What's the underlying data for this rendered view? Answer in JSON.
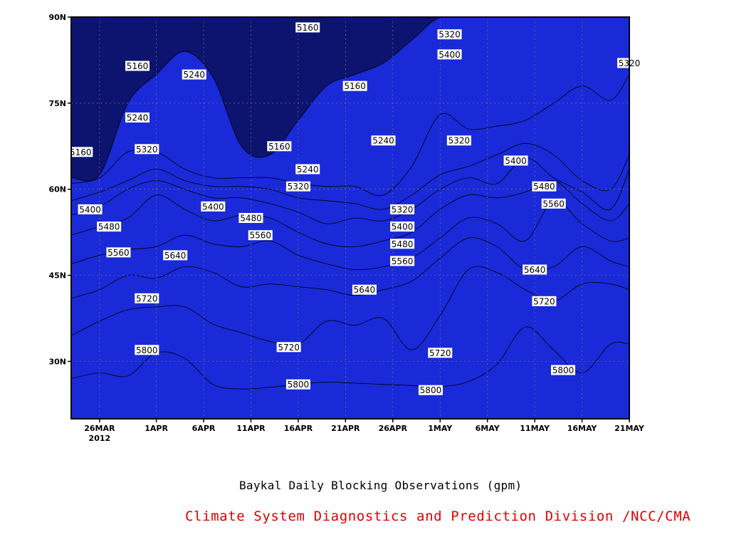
{
  "caption": "Baykal Daily Blocking Observations (gpm)",
  "credit": "Climate System Diagnostics and Prediction Division /NCC/CMA",
  "chart_data": {
    "type": "heatmap",
    "title": "",
    "xlabel": "",
    "ylabel": "",
    "x_ticks": [
      "26MAR",
      "1APR",
      "6APR",
      "11APR",
      "16APR",
      "21APR",
      "26APR",
      "1MAY",
      "6MAY",
      "11MAY",
      "16MAY",
      "21MAY"
    ],
    "x_tick_sublabel": "2012",
    "y_ticks": [
      "30N",
      "45N",
      "60N",
      "75N",
      "90N"
    ],
    "xlim": [
      "2012-03-23",
      "2012-05-21"
    ],
    "ylim": [
      20,
      90
    ],
    "grid": true,
    "contour_levels": [
      5160,
      5240,
      5320,
      5400,
      5480,
      5560,
      5640,
      5720,
      5800
    ],
    "colors": [
      "#0c1470",
      "#1a2ad8",
      "#4a55ee",
      "#5a96e8",
      "#66c6fb",
      "#fdfd7a",
      "#fde29e",
      "#fba66a",
      "#fd7645",
      "#f76b7a"
    ],
    "x": [
      "3/23",
      "3/26",
      "3/29",
      "4/1",
      "4/4",
      "4/7",
      "4/10",
      "4/13",
      "4/16",
      "4/19",
      "4/22",
      "4/25",
      "4/28",
      "5/1",
      "5/4",
      "5/7",
      "5/10",
      "5/13",
      "5/16",
      "5/19",
      "5/21"
    ],
    "boundaries": [
      {
        "level": 5800,
        "lat": [
          27.0,
          28.0,
          27.5,
          31.5,
          30.5,
          26.0,
          25.2,
          25.5,
          26.0,
          26.4,
          26.2,
          26.0,
          25.8,
          25.6,
          26.5,
          29.5,
          36.0,
          32.0,
          28.0,
          33.0,
          33.0
        ]
      },
      {
        "level": 5720,
        "lat": [
          34.5,
          37.0,
          39.0,
          39.5,
          39.5,
          36.5,
          35.0,
          33.5,
          33.0,
          37.0,
          36.3,
          37.5,
          32.0,
          38.0,
          46.0,
          45.5,
          42.5,
          40.5,
          43.5,
          43.5,
          42.5
        ]
      },
      {
        "level": 5640,
        "lat": [
          41.0,
          42.5,
          45.0,
          44.5,
          46.5,
          45.5,
          43.0,
          43.5,
          43.0,
          42.5,
          41.5,
          42.5,
          44.0,
          48.0,
          51.5,
          50.0,
          46.0,
          46.5,
          50.0,
          47.5,
          46.5
        ]
      },
      {
        "level": 5560,
        "lat": [
          47.0,
          48.5,
          49.5,
          50.0,
          52.0,
          50.5,
          50.0,
          51.0,
          48.5,
          47.0,
          46.0,
          46.5,
          48.0,
          51.5,
          55.0,
          54.0,
          51.0,
          58.0,
          54.0,
          51.0,
          51.5
        ]
      },
      {
        "level": 5480,
        "lat": [
          52.0,
          53.5,
          55.0,
          59.0,
          56.5,
          54.5,
          55.5,
          55.0,
          52.5,
          50.5,
          50.0,
          51.0,
          52.5,
          56.5,
          59.0,
          58.5,
          59.5,
          61.5,
          57.5,
          54.5,
          57.5
        ]
      },
      {
        "level": 5400,
        "lat": [
          55.5,
          57.0,
          60.0,
          61.5,
          60.0,
          58.5,
          58.5,
          57.5,
          56.0,
          54.0,
          55.0,
          54.5,
          56.5,
          60.0,
          62.0,
          61.0,
          65.5,
          62.0,
          59.5,
          56.5,
          63.5
        ]
      },
      {
        "level": 5320,
        "lat": [
          58.0,
          59.5,
          61.5,
          63.5,
          61.5,
          60.5,
          60.5,
          60.0,
          58.5,
          58.0,
          57.5,
          56.5,
          59.0,
          62.5,
          64.0,
          66.0,
          68.0,
          66.0,
          61.5,
          60.0,
          66.0
        ]
      },
      {
        "level": 5240,
        "lat": [
          61.0,
          62.0,
          66.5,
          66.5,
          63.5,
          62.0,
          62.0,
          62.0,
          61.0,
          60.5,
          60.5,
          59.0,
          64.0,
          73.0,
          70.5,
          71.0,
          72.0,
          75.0,
          78.0,
          75.5,
          80.0
        ]
      },
      {
        "level": 5160,
        "lat": [
          62.0,
          62.5,
          75.0,
          80.0,
          84.0,
          79.5,
          67.5,
          66.0,
          72.0,
          78.0,
          80.0,
          82.0,
          86.0,
          90.0,
          90.0,
          90.0,
          90.0,
          90.0,
          90.0,
          90.0,
          90.0
        ]
      }
    ],
    "contour_labels": [
      {
        "text": "5160",
        "date": "3/24",
        "lat": 66.5
      },
      {
        "text": "5160",
        "date": "3/30",
        "lat": 81.5
      },
      {
        "text": "5240",
        "date": "3/30",
        "lat": 72.5
      },
      {
        "text": "5240",
        "date": "4/5",
        "lat": 80.0
      },
      {
        "text": "5320",
        "date": "3/31",
        "lat": 67.0
      },
      {
        "text": "5160",
        "date": "4/14",
        "lat": 67.5
      },
      {
        "text": "5160",
        "date": "4/17",
        "lat": 88.2
      },
      {
        "text": "5160",
        "date": "4/22",
        "lat": 78.0
      },
      {
        "text": "5240",
        "date": "4/17",
        "lat": 63.5
      },
      {
        "text": "5240",
        "date": "4/25",
        "lat": 68.5
      },
      {
        "text": "5320",
        "date": "4/16",
        "lat": 60.5
      },
      {
        "text": "5320",
        "date": "5/2",
        "lat": 87.0
      },
      {
        "text": "5400",
        "date": "5/2",
        "lat": 83.5
      },
      {
        "text": "5320",
        "date": "5/3",
        "lat": 68.5
      },
      {
        "text": "5400",
        "date": "5/9",
        "lat": 65.0
      },
      {
        "text": "5320",
        "date": "5/21",
        "lat": 82.0
      },
      {
        "text": "5320",
        "date": "4/27",
        "lat": 56.5
      },
      {
        "text": "5400",
        "date": "4/27",
        "lat": 53.5
      },
      {
        "text": "5480",
        "date": "4/27",
        "lat": 50.5
      },
      {
        "text": "5560",
        "date": "4/27",
        "lat": 47.5
      },
      {
        "text": "5640",
        "date": "4/23",
        "lat": 42.5
      },
      {
        "text": "5400",
        "date": "3/25",
        "lat": 56.5
      },
      {
        "text": "5480",
        "date": "3/27",
        "lat": 53.5
      },
      {
        "text": "5560",
        "date": "3/28",
        "lat": 49.0
      },
      {
        "text": "5640",
        "date": "4/3",
        "lat": 48.5
      },
      {
        "text": "5720",
        "date": "3/31",
        "lat": 41.0
      },
      {
        "text": "5800",
        "date": "3/31",
        "lat": 32.0
      },
      {
        "text": "5400",
        "date": "4/7",
        "lat": 57.0
      },
      {
        "text": "5480",
        "date": "4/11",
        "lat": 55.0
      },
      {
        "text": "5560",
        "date": "4/12",
        "lat": 52.0
      },
      {
        "text": "5720",
        "date": "4/15",
        "lat": 32.5
      },
      {
        "text": "5800",
        "date": "4/16",
        "lat": 26.0
      },
      {
        "text": "5720",
        "date": "5/1",
        "lat": 31.5
      },
      {
        "text": "5800",
        "date": "4/30",
        "lat": 25.0
      },
      {
        "text": "5480",
        "date": "5/12",
        "lat": 60.5
      },
      {
        "text": "5560",
        "date": "5/13",
        "lat": 57.5
      },
      {
        "text": "5640",
        "date": "5/11",
        "lat": 46.0
      },
      {
        "text": "5720",
        "date": "5/12",
        "lat": 40.5
      },
      {
        "text": "5800",
        "date": "5/14",
        "lat": 28.5
      }
    ]
  }
}
